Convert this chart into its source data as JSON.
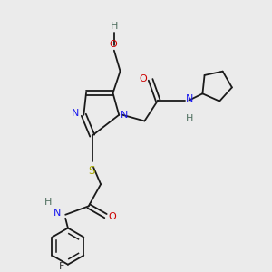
{
  "background_color": "#ebebeb",
  "figsize": [
    3.0,
    3.0
  ],
  "dpi": 100,
  "xlim": [
    0,
    10
  ],
  "ylim": [
    0,
    11
  ]
}
